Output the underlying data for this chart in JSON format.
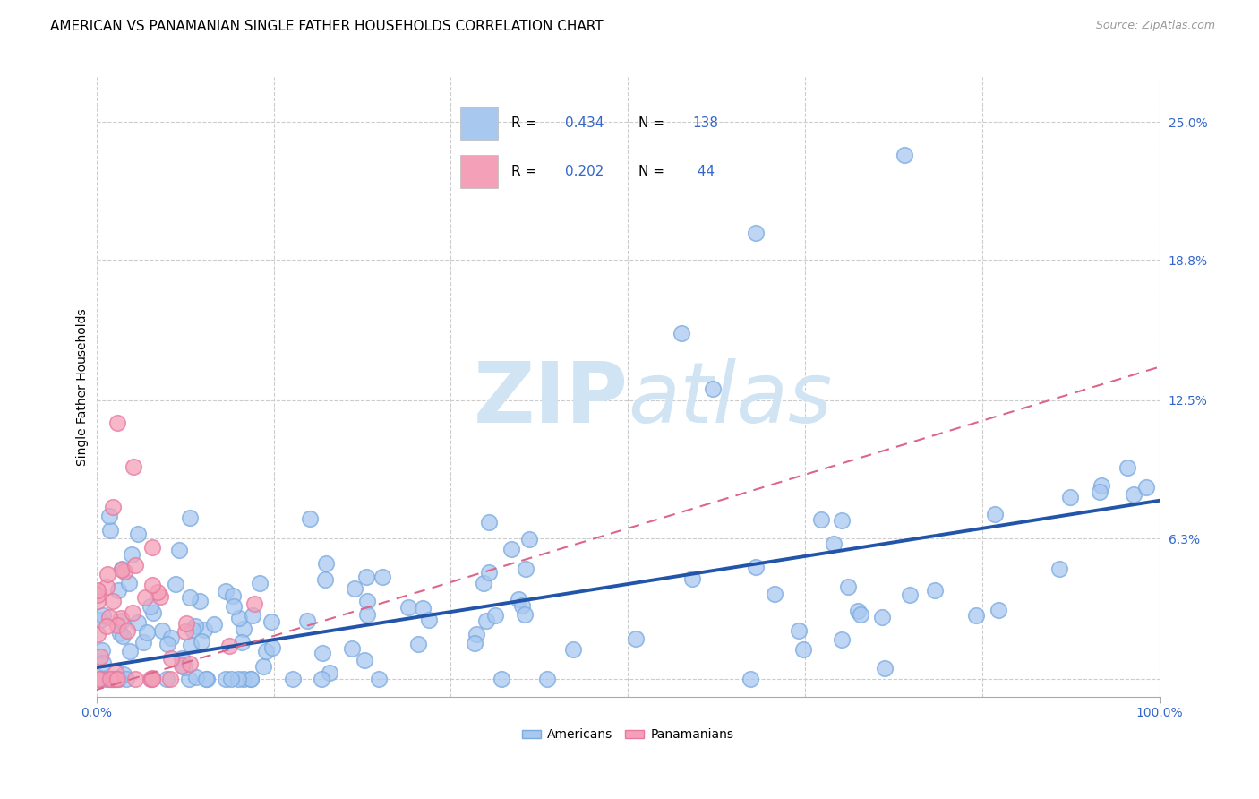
{
  "title": "AMERICAN VS PANAMANIAN SINGLE FATHER HOUSEHOLDS CORRELATION CHART",
  "source": "Source: ZipAtlas.com",
  "ylabel": "Single Father Households",
  "watermark": "ZIPatlas",
  "xlim": [
    0.0,
    1.0
  ],
  "ylim": [
    -0.008,
    0.27
  ],
  "ytick_positions": [
    0.0,
    0.063,
    0.125,
    0.188,
    0.25
  ],
  "yticklabels": [
    "",
    "6.3%",
    "12.5%",
    "18.8%",
    "25.0%"
  ],
  "legend_text": [
    [
      "R = ",
      "0.434",
      "  N = ",
      "138"
    ],
    [
      "R = ",
      "0.202",
      "  N = ",
      " 44"
    ]
  ],
  "american_color": "#A8C8F0",
  "panamanian_color": "#F4A0B8",
  "american_edge_color": "#7AAAE0",
  "panamanian_edge_color": "#E878A0",
  "american_line_color": "#2255AA",
  "panamanian_line_color": "#DD6688",
  "stat_color": "#3366CC",
  "title_fontsize": 11,
  "axis_label_fontsize": 10,
  "tick_fontsize": 10,
  "watermark_color": "#D0E4F4",
  "background_color": "#FFFFFF",
  "grid_color": "#CCCCCC"
}
